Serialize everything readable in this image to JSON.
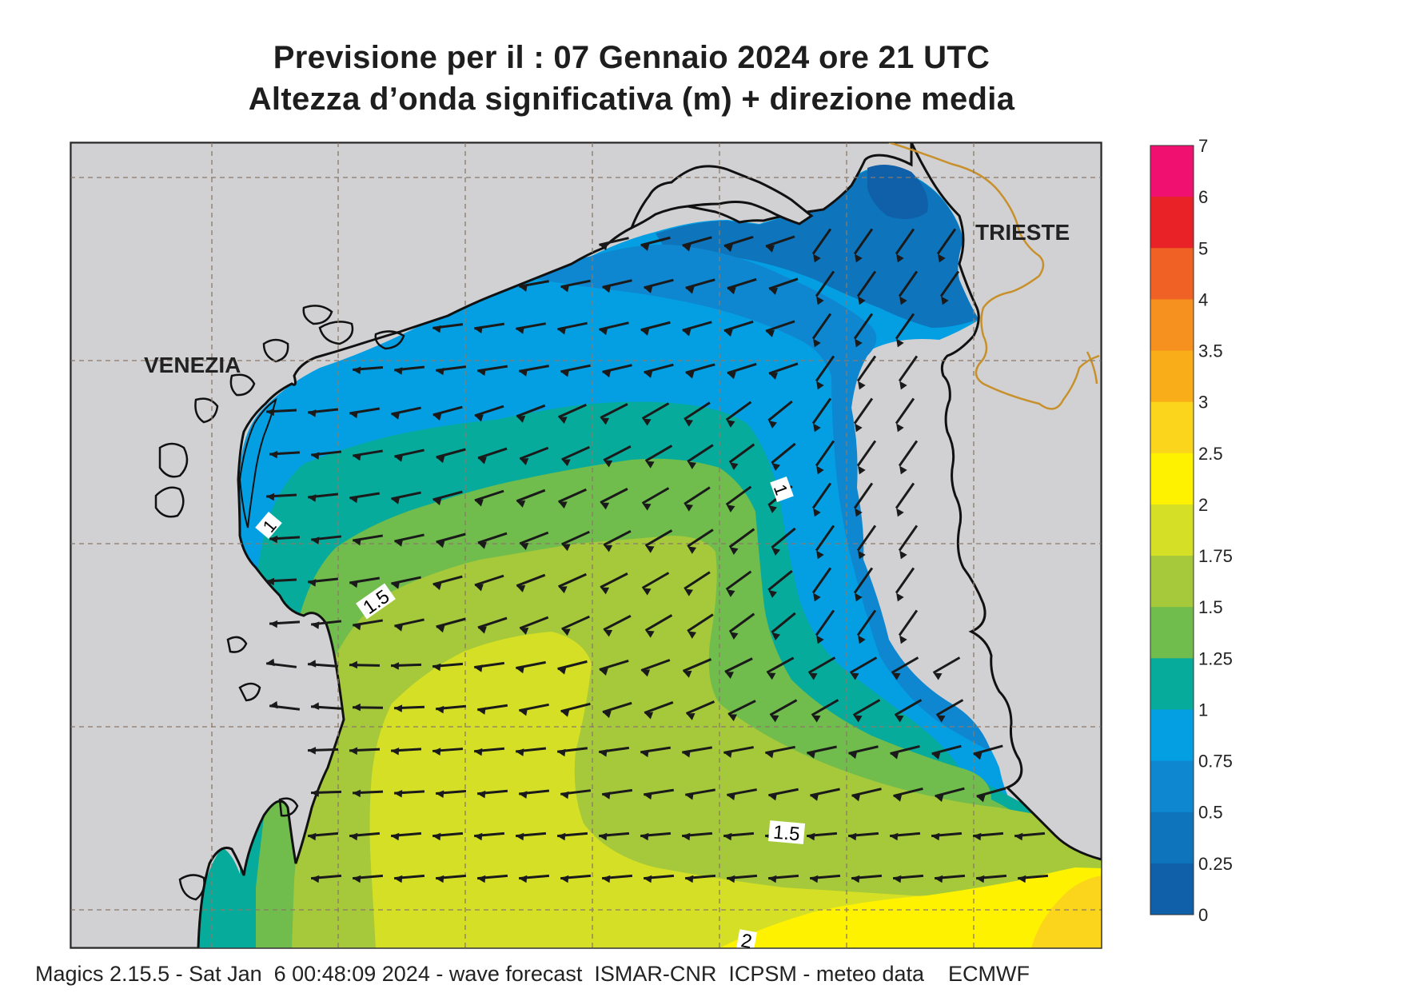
{
  "title_line1": "Previsione per il  :  07  Gennaio  2024   ore 21 UTC",
  "title_line2": "Altezza d’onda significativa (m) + direzione media",
  "footer": "Magics 2.15.5 - Sat Jan  6 00:48:09 2024 - wave forecast  ISMAR-CNR  ICPSM - meteo data    ECMWF",
  "places": {
    "venezia": "VENEZIA",
    "trieste": "TRIESTE"
  },
  "contour_labels": {
    "c1_west": "1",
    "c1_east": "1",
    "c15_west": "1.5",
    "c15_south": "1.5",
    "c2": "2"
  },
  "legend": {
    "levels": [
      "7",
      "6",
      "5",
      "4",
      "3.5",
      "3",
      "2.5",
      "2",
      "1.75",
      "1.5",
      "1.25",
      "1",
      "0.75",
      "0.5",
      "0.25",
      "0"
    ],
    "colors": [
      "#ef1070",
      "#e82226",
      "#f06126",
      "#f6901e",
      "#f9ad19",
      "#fbd41c",
      "#fff200",
      "#d5df25",
      "#a5c93a",
      "#70bc4d",
      "#07ab9c",
      "#049fe3",
      "#0e87d0",
      "#0e74bc",
      "#0f5fa9"
    ]
  },
  "colors": {
    "land": "#d1d1d3",
    "coast": "#111111",
    "border": "#c8902a",
    "arrow": "#1a1a1a"
  }
}
